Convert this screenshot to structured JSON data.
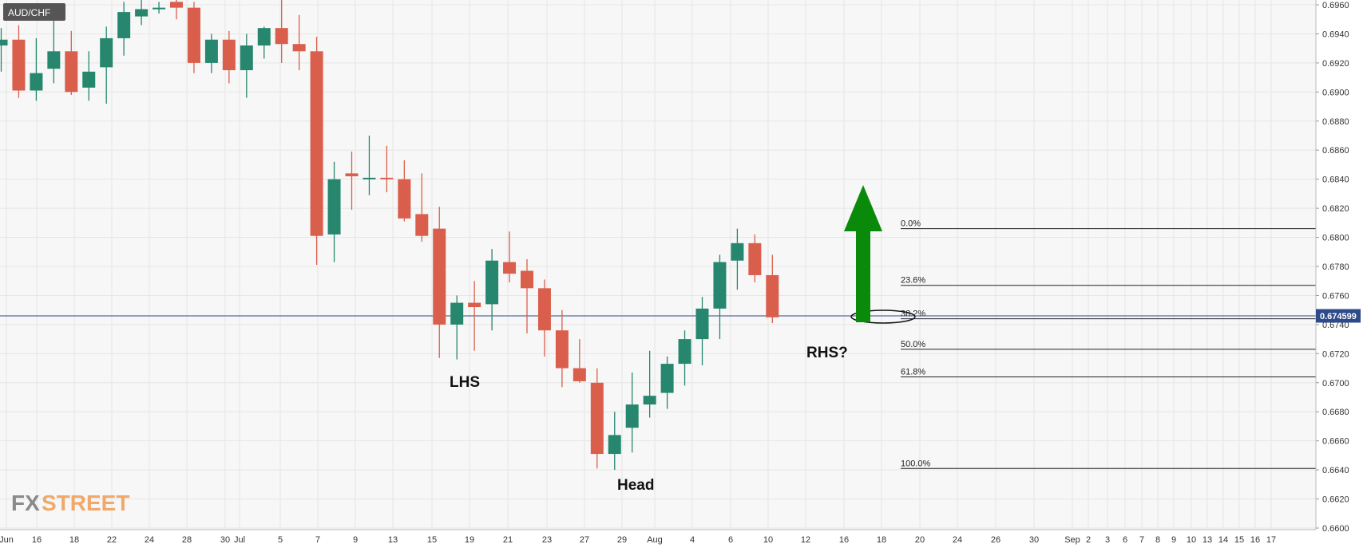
{
  "symbol": "AUD/CHF",
  "current_price": "0.674599",
  "colors": {
    "bull": "#26876e",
    "bear": "#d95f4c",
    "arrow": "#0a8a0a",
    "price_line": "#2d4a8a",
    "grid": "#e6e6e6",
    "background": "#f7f7f7"
  },
  "annotations": {
    "lhs": "LHS",
    "head": "Head",
    "rhs": "RHS?"
  },
  "logo": {
    "fx": "FX",
    "street": "STREET"
  },
  "chart_data": {
    "type": "candlestick",
    "title": "AUD/CHF",
    "ylim": [
      0.66,
      0.6962
    ],
    "y_ticks": [
      "0.6960",
      "0.6940",
      "0.6920",
      "0.6900",
      "0.6880",
      "0.6860",
      "0.6840",
      "0.6820",
      "0.6800",
      "0.6780",
      "0.6760",
      "0.6740",
      "0.6720",
      "0.6700",
      "0.6680",
      "0.6660",
      "0.6640",
      "0.6620",
      "0.6600"
    ],
    "x_ticks": [
      "Jun",
      "16",
      "18",
      "22",
      "24",
      "28",
      "30",
      "Jul",
      "5",
      "7",
      "9",
      "13",
      "15",
      "19",
      "21",
      "23",
      "27",
      "29",
      "Aug",
      "4",
      "6",
      "10",
      "12",
      "16",
      "18",
      "20",
      "24",
      "26",
      "30",
      "Sep",
      "2",
      "3",
      "6",
      "7",
      "8",
      "9",
      "10",
      "13",
      "14",
      "15",
      "16",
      "17"
    ],
    "candles": [
      {
        "o": 0.6932,
        "h": 0.6944,
        "l": 0.6914,
        "c": 0.6936
      },
      {
        "o": 0.6936,
        "h": 0.6946,
        "l": 0.6896,
        "c": 0.6901
      },
      {
        "o": 0.6901,
        "h": 0.6937,
        "l": 0.6894,
        "c": 0.6913
      },
      {
        "o": 0.6916,
        "h": 0.6955,
        "l": 0.6906,
        "c": 0.6928
      },
      {
        "o": 0.6928,
        "h": 0.6942,
        "l": 0.6898,
        "c": 0.69
      },
      {
        "o": 0.6903,
        "h": 0.6928,
        "l": 0.6894,
        "c": 0.6914
      },
      {
        "o": 0.6917,
        "h": 0.6945,
        "l": 0.6892,
        "c": 0.6937
      },
      {
        "o": 0.6937,
        "h": 0.6962,
        "l": 0.6925,
        "c": 0.6955
      },
      {
        "o": 0.6952,
        "h": 0.6965,
        "l": 0.6946,
        "c": 0.6957
      },
      {
        "o": 0.6958,
        "h": 0.6962,
        "l": 0.6954,
        "c": 0.6958
      },
      {
        "o": 0.6962,
        "h": 0.6965,
        "l": 0.695,
        "c": 0.6958
      },
      {
        "o": 0.6958,
        "h": 0.6962,
        "l": 0.6913,
        "c": 0.692
      },
      {
        "o": 0.692,
        "h": 0.694,
        "l": 0.6913,
        "c": 0.6936
      },
      {
        "o": 0.6936,
        "h": 0.6942,
        "l": 0.6906,
        "c": 0.6915
      },
      {
        "o": 0.6915,
        "h": 0.694,
        "l": 0.6896,
        "c": 0.6932
      },
      {
        "o": 0.6932,
        "h": 0.6945,
        "l": 0.6923,
        "c": 0.6944
      },
      {
        "o": 0.6944,
        "h": 0.6965,
        "l": 0.692,
        "c": 0.6933
      },
      {
        "o": 0.6933,
        "h": 0.6953,
        "l": 0.6915,
        "c": 0.6928
      },
      {
        "o": 0.6928,
        "h": 0.6938,
        "l": 0.6781,
        "c": 0.6801
      },
      {
        "o": 0.6802,
        "h": 0.6852,
        "l": 0.6783,
        "c": 0.684
      },
      {
        "o": 0.6844,
        "h": 0.6859,
        "l": 0.6819,
        "c": 0.6842
      },
      {
        "o": 0.6841,
        "h": 0.687,
        "l": 0.6829,
        "c": 0.6841
      },
      {
        "o": 0.6841,
        "h": 0.6863,
        "l": 0.6831,
        "c": 0.684
      },
      {
        "o": 0.684,
        "h": 0.6853,
        "l": 0.6811,
        "c": 0.6813
      },
      {
        "o": 0.6816,
        "h": 0.6844,
        "l": 0.6797,
        "c": 0.6801
      },
      {
        "o": 0.6806,
        "h": 0.6821,
        "l": 0.6717,
        "c": 0.674
      },
      {
        "o": 0.674,
        "h": 0.676,
        "l": 0.6716,
        "c": 0.6755
      },
      {
        "o": 0.6755,
        "h": 0.677,
        "l": 0.6722,
        "c": 0.6752
      },
      {
        "o": 0.6754,
        "h": 0.6792,
        "l": 0.6736,
        "c": 0.6784
      },
      {
        "o": 0.6783,
        "h": 0.6804,
        "l": 0.6769,
        "c": 0.6775
      },
      {
        "o": 0.6777,
        "h": 0.6785,
        "l": 0.6734,
        "c": 0.6765
      },
      {
        "o": 0.6765,
        "h": 0.6771,
        "l": 0.6718,
        "c": 0.6736
      },
      {
        "o": 0.6736,
        "h": 0.675,
        "l": 0.6697,
        "c": 0.671
      },
      {
        "o": 0.671,
        "h": 0.673,
        "l": 0.67,
        "c": 0.6701
      },
      {
        "o": 0.67,
        "h": 0.671,
        "l": 0.6641,
        "c": 0.6651
      },
      {
        "o": 0.6651,
        "h": 0.668,
        "l": 0.664,
        "c": 0.6664
      },
      {
        "o": 0.6669,
        "h": 0.6707,
        "l": 0.6652,
        "c": 0.6685
      },
      {
        "o": 0.6685,
        "h": 0.6722,
        "l": 0.6676,
        "c": 0.6691
      },
      {
        "o": 0.6693,
        "h": 0.6718,
        "l": 0.6682,
        "c": 0.6713
      },
      {
        "o": 0.6713,
        "h": 0.6736,
        "l": 0.6698,
        "c": 0.673
      },
      {
        "o": 0.673,
        "h": 0.6759,
        "l": 0.6712,
        "c": 0.6751
      },
      {
        "o": 0.6751,
        "h": 0.6788,
        "l": 0.673,
        "c": 0.6783
      },
      {
        "o": 0.6784,
        "h": 0.6806,
        "l": 0.6764,
        "c": 0.6796
      },
      {
        "o": 0.6796,
        "h": 0.6802,
        "l": 0.6769,
        "c": 0.6774
      },
      {
        "o": 0.6774,
        "h": 0.6788,
        "l": 0.6741,
        "c": 0.6745
      }
    ],
    "fibonacci": [
      {
        "label": "0.0%",
        "value": 0.6806
      },
      {
        "label": "23.6%",
        "value": 0.6767
      },
      {
        "label": "38.2%",
        "value": 0.6744
      },
      {
        "label": "50.0%",
        "value": 0.6723
      },
      {
        "label": "61.8%",
        "value": 0.6704
      },
      {
        "label": "100.0%",
        "value": 0.6641
      }
    ],
    "current_price": 0.674599
  }
}
